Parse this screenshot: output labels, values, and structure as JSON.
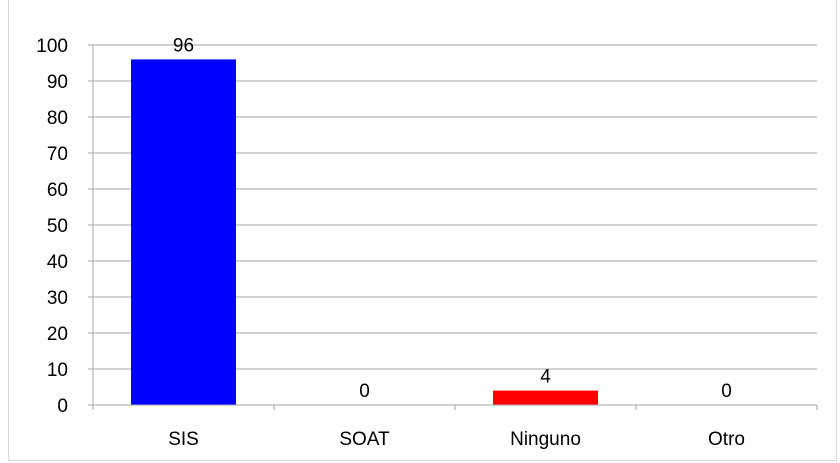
{
  "chart_data": {
    "type": "bar",
    "title": "",
    "xlabel": "",
    "ylabel": "",
    "categories": [
      "SIS",
      "SOAT",
      "Ninguno",
      "Otro"
    ],
    "values": [
      96,
      0,
      4,
      0
    ],
    "data_labels": [
      "96",
      "0",
      "4",
      "0"
    ],
    "bar_colors": [
      "#0000ff",
      "#0000ff",
      "#ff0000",
      "#ff0000"
    ],
    "ylim": [
      0,
      100
    ],
    "yticks": [
      0,
      10,
      20,
      30,
      40,
      50,
      60,
      70,
      80,
      90,
      100
    ],
    "ytick_labels": [
      "0",
      "10",
      "20",
      "30",
      "40",
      "50",
      "60",
      "70",
      "80",
      "90",
      "100"
    ],
    "grid": true,
    "legend": "none"
  }
}
